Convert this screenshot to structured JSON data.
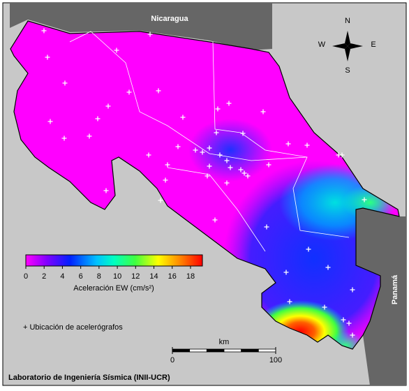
{
  "map": {
    "labels": {
      "nicaragua": "Nicaragua",
      "panama": "Panamá"
    },
    "compass": {
      "n": "N",
      "s": "S",
      "w": "W",
      "e": "E"
    },
    "colorbar": {
      "title": "Aceleración EW (cm/s²)",
      "range": [
        0,
        19.3
      ],
      "ticks": [
        0,
        2,
        4,
        6,
        8,
        10,
        12,
        14,
        16,
        18
      ]
    },
    "legend": "+ Ubicación de acelerógrafos",
    "scale_bar": {
      "unit": "km",
      "ticks": [
        0,
        100
      ]
    },
    "credit": "Laboratorio de Ingeniería Sísmica (INII-UCR)"
  }
}
